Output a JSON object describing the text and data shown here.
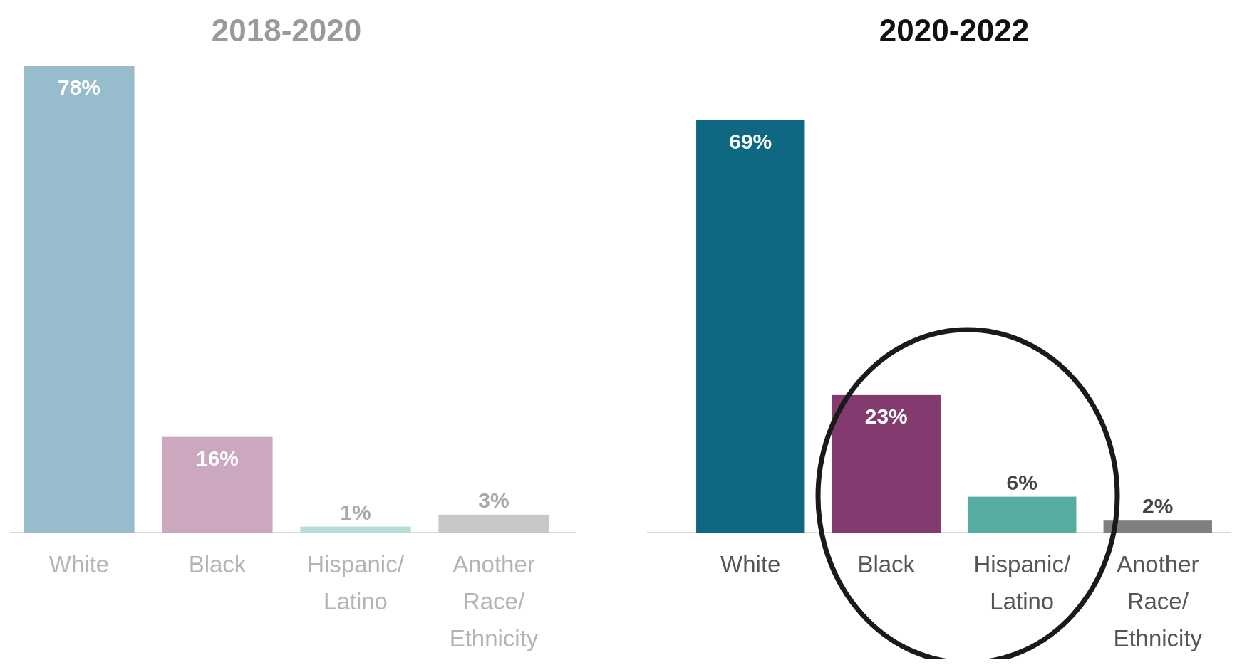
{
  "chart_data": [
    {
      "type": "bar",
      "title": "2018-2020",
      "categories": [
        "White",
        "Black",
        "Hispanic/ Latino",
        "Another Race/ Ethnicity"
      ],
      "values": [
        78,
        16,
        1,
        3
      ],
      "colors": [
        "#97bccb",
        "#cba8c0",
        "#b5ddd8",
        "#c8c8c8"
      ],
      "value_labels": [
        "78%",
        "16%",
        "1%",
        "3%"
      ]
    },
    {
      "type": "bar",
      "title": "2020-2022",
      "categories": [
        "White",
        "Black",
        "Hispanic/ Latino",
        "Another Race/ Ethnicity"
      ],
      "values": [
        69,
        23,
        6,
        2
      ],
      "colors": [
        "#0e6882",
        "#823a6f",
        "#55aea0",
        "#7f7f7f"
      ],
      "value_labels": [
        "69%",
        "23%",
        "6%",
        "2%"
      ]
    }
  ]
}
